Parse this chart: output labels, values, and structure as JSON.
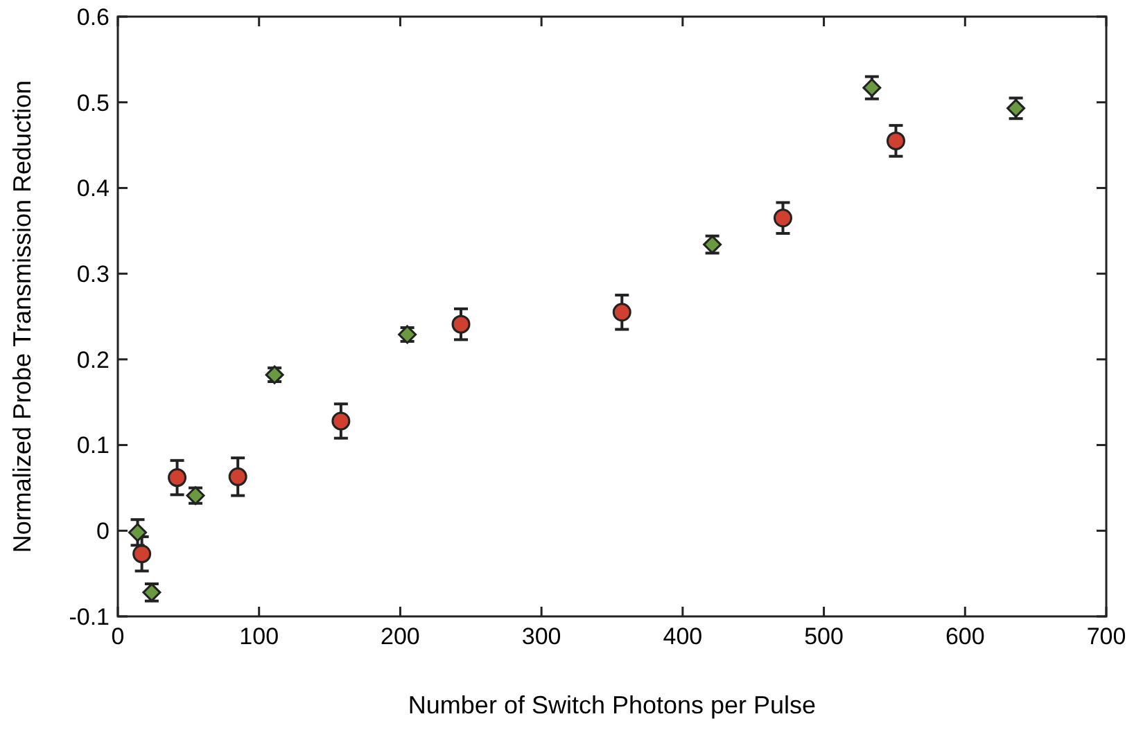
{
  "chart_data": {
    "type": "scatter",
    "xlabel": "Number of Switch Photons per Pulse",
    "ylabel": "Normalized Probe Transmission Reduction",
    "xlim": [
      0,
      700
    ],
    "ylim": [
      -0.1,
      0.6
    ],
    "xticks": [
      0,
      100,
      200,
      300,
      400,
      500,
      600,
      700
    ],
    "yticks": [
      -0.1,
      0,
      0.1,
      0.2,
      0.3,
      0.4,
      0.5,
      0.6
    ],
    "series": [
      {
        "color": "#d04030",
        "marker": "circle",
        "x": [
          17,
          42,
          85,
          158,
          243,
          357,
          471,
          551
        ],
        "values": [
          -0.027,
          0.062,
          0.063,
          0.128,
          0.241,
          0.255,
          0.365,
          0.455
        ],
        "errors": [
          0.02,
          0.02,
          0.022,
          0.02,
          0.018,
          0.02,
          0.018,
          0.018
        ]
      },
      {
        "color": "#6a9a40",
        "marker": "diamond",
        "x": [
          14,
          24,
          55,
          111,
          205,
          421,
          534,
          636
        ],
        "values": [
          -0.002,
          -0.072,
          0.041,
          0.182,
          0.229,
          0.334,
          0.517,
          0.493
        ],
        "errors": [
          0.015,
          0.01,
          0.009,
          0.008,
          0.008,
          0.01,
          0.013,
          0.012
        ]
      }
    ]
  }
}
